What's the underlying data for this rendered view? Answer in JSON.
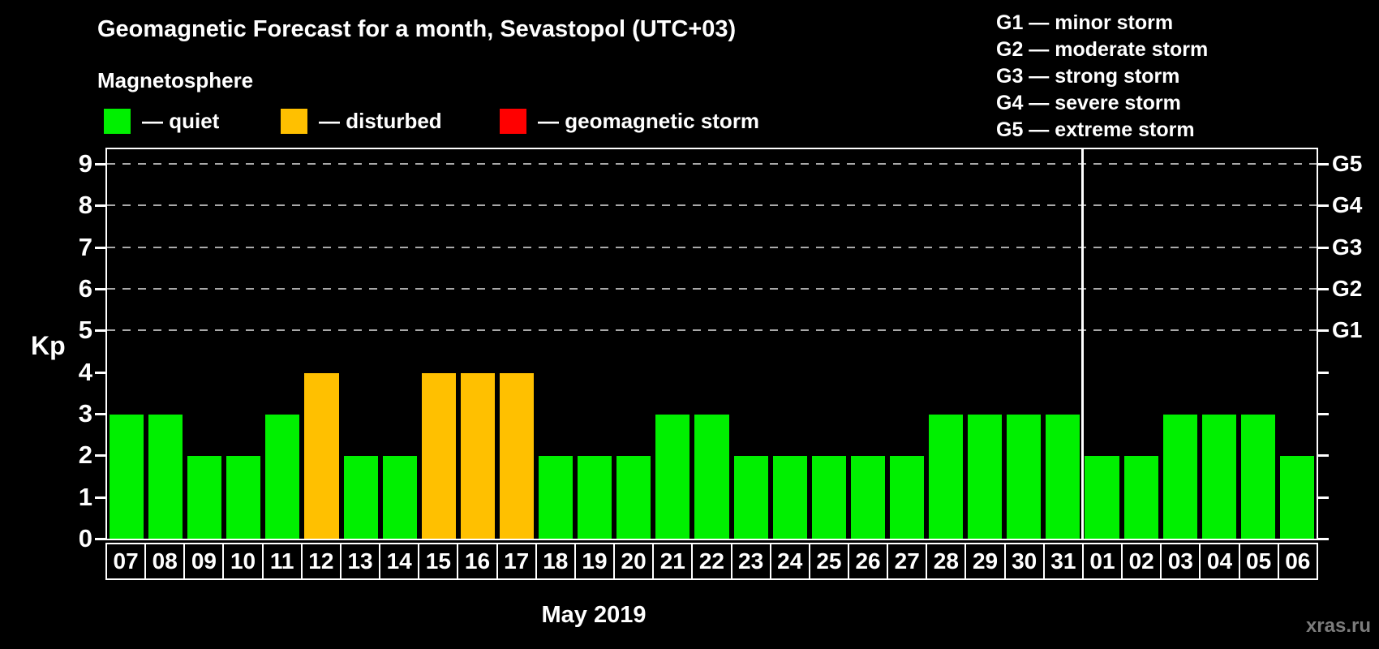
{
  "title": "Geomagnetic Forecast for a month, Sevastopol (UTC+03)",
  "subtitle": "Magnetosphere",
  "legend": {
    "items": [
      {
        "id": "quiet",
        "label": "— quiet",
        "color": "#00f000"
      },
      {
        "id": "disturbed",
        "label": "— disturbed",
        "color": "#ffc000"
      },
      {
        "id": "storm",
        "label": "— geomagnetic storm",
        "color": "#ff0000"
      }
    ]
  },
  "storm_scale_legend": [
    "G1 — minor storm",
    "G2 — moderate storm",
    "G3 — strong storm",
    "G4 — severe storm",
    "G5 — extreme storm"
  ],
  "watermark": "xras.ru",
  "chart_data": {
    "type": "bar",
    "title": "Geomagnetic Forecast for a month, Sevastopol (UTC+03)",
    "xlabel": "May 2019",
    "ylabel": "Kp",
    "ylim": [
      0,
      9.35
    ],
    "yticks": [
      0,
      1,
      2,
      3,
      4,
      5,
      6,
      7,
      8,
      9
    ],
    "gridlines_at": [
      5,
      6,
      7,
      8,
      9
    ],
    "grid": "dashed-horizontal",
    "legend_position": "top-left",
    "right_axis": [
      {
        "kp": 5,
        "label": "G1"
      },
      {
        "kp": 6,
        "label": "G2"
      },
      {
        "kp": 7,
        "label": "G3"
      },
      {
        "kp": 8,
        "label": "G4"
      },
      {
        "kp": 9,
        "label": "G5"
      }
    ],
    "categories": [
      "07",
      "08",
      "09",
      "10",
      "11",
      "12",
      "13",
      "14",
      "15",
      "16",
      "17",
      "18",
      "19",
      "20",
      "21",
      "22",
      "23",
      "24",
      "25",
      "26",
      "27",
      "28",
      "29",
      "30",
      "31",
      "01",
      "02",
      "03",
      "04",
      "05",
      "06"
    ],
    "values": [
      3,
      3,
      2,
      2,
      3,
      4,
      2,
      2,
      4,
      4,
      4,
      2,
      2,
      2,
      3,
      3,
      2,
      2,
      2,
      2,
      2,
      3,
      3,
      3,
      3,
      2,
      2,
      3,
      3,
      3,
      2
    ],
    "statuses": [
      "quiet",
      "quiet",
      "quiet",
      "quiet",
      "quiet",
      "disturbed",
      "quiet",
      "quiet",
      "disturbed",
      "disturbed",
      "disturbed",
      "quiet",
      "quiet",
      "quiet",
      "quiet",
      "quiet",
      "quiet",
      "quiet",
      "quiet",
      "quiet",
      "quiet",
      "quiet",
      "quiet",
      "quiet",
      "quiet",
      "quiet",
      "quiet",
      "quiet",
      "quiet",
      "quiet",
      "quiet"
    ],
    "status_colors": {
      "quiet": "#00f000",
      "disturbed": "#ffc000",
      "storm": "#ff0000"
    },
    "month_separator_after_index": 24
  }
}
